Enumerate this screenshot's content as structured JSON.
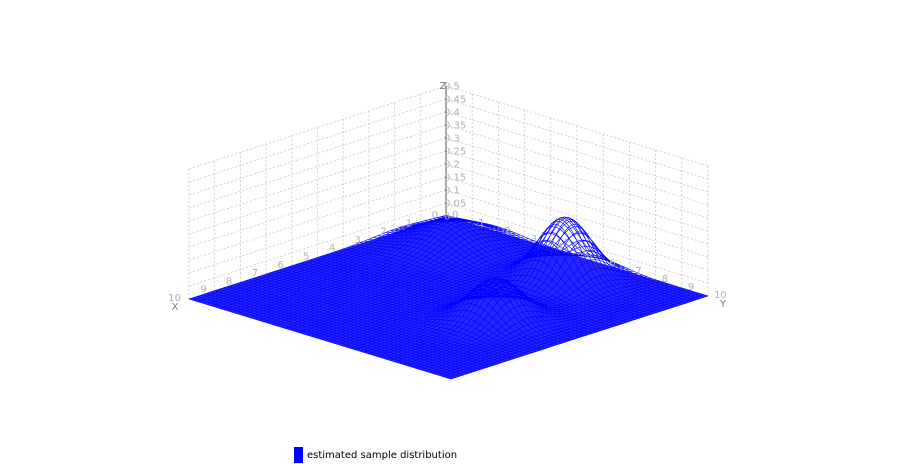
{
  "chart_data": {
    "type": "surface",
    "title": "",
    "x_axis": {
      "label": "X",
      "range": [
        0,
        10
      ],
      "ticks": [
        "0",
        "1",
        "2",
        "3",
        "4",
        "5",
        "6",
        "7",
        "8",
        "9",
        "10"
      ]
    },
    "y_axis": {
      "label": "Y",
      "range": [
        0,
        10
      ],
      "ticks": [
        "0",
        "1",
        "2",
        "3",
        "4",
        "5",
        "6",
        "7",
        "8",
        "9",
        "10"
      ]
    },
    "z_axis": {
      "label": "Z",
      "range": [
        0,
        0.5
      ],
      "ticks": [
        "0",
        "0.05",
        "0.1",
        "0.15",
        "0.2",
        "0.25",
        "0.3",
        "0.35",
        "0.4",
        "0.45",
        "0.5"
      ]
    },
    "grid": true,
    "surface_color": "#0000ff",
    "series": [
      {
        "name": "estimated sample distribution",
        "peaks": [
          {
            "x": 1.8,
            "y": 2.0,
            "height": 0.1,
            "sigma": 1.0
          },
          {
            "x": 1.7,
            "y": 6.2,
            "height": 0.24,
            "sigma": 0.75
          },
          {
            "x": 5.5,
            "y": 7.3,
            "height": 0.16,
            "sigma": 0.75
          }
        ]
      }
    ],
    "legend_position": "bottom"
  },
  "legend": {
    "label": "estimated sample distribution",
    "color": "#0000ff"
  }
}
